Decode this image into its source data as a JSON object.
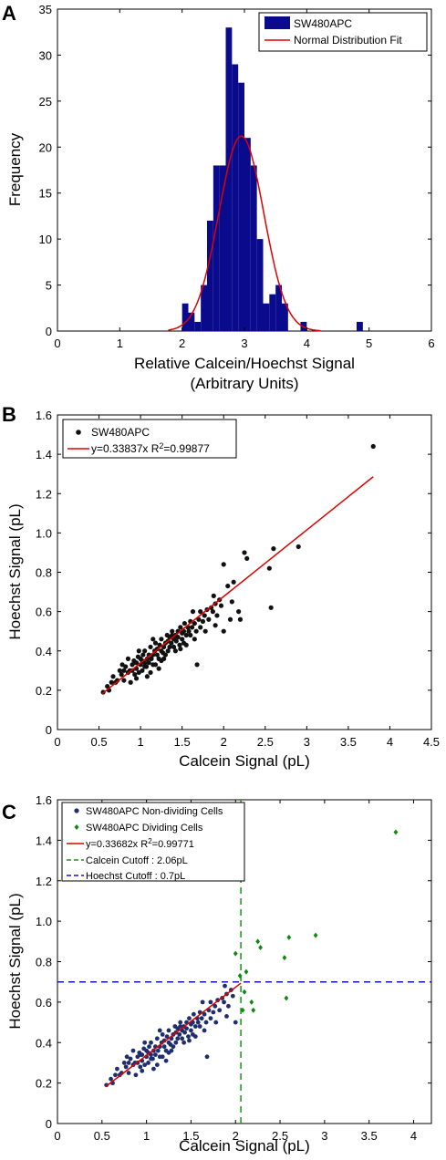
{
  "colors": {
    "bar": "#0a0a8c",
    "fit": "#e00000",
    "point": "#111111",
    "nondividing": "#1f2f6e",
    "dividing": "#118811",
    "calcein_cutoff": "#119911",
    "hoechst_cutoff": "#1111dd"
  },
  "chart_data": [
    {
      "panel": "A",
      "type": "bar",
      "xlabel": [
        "Relative Calcein/Hoechst Signal",
        "(Arbitrary Units)"
      ],
      "ylabel": "Frequency",
      "xlim": [
        0,
        6
      ],
      "ylim": [
        0,
        35
      ],
      "xticks": [
        "0",
        "1",
        "2",
        "3",
        "4",
        "5",
        "6"
      ],
      "yticks": [
        "0",
        "5",
        "10",
        "15",
        "20",
        "25",
        "30",
        "35"
      ],
      "bin_width": 0.1,
      "bins": [
        {
          "x": 2.0,
          "y": 3
        },
        {
          "x": 2.1,
          "y": 2
        },
        {
          "x": 2.2,
          "y": 1
        },
        {
          "x": 2.3,
          "y": 5
        },
        {
          "x": 2.4,
          "y": 12
        },
        {
          "x": 2.5,
          "y": 18
        },
        {
          "x": 2.6,
          "y": 18
        },
        {
          "x": 2.7,
          "y": 33
        },
        {
          "x": 2.8,
          "y": 29
        },
        {
          "x": 2.9,
          "y": 27
        },
        {
          "x": 3.0,
          "y": 21
        },
        {
          "x": 3.1,
          "y": 18
        },
        {
          "x": 3.2,
          "y": 10
        },
        {
          "x": 3.3,
          "y": 3
        },
        {
          "x": 3.4,
          "y": 4
        },
        {
          "x": 3.5,
          "y": 5
        },
        {
          "x": 3.6,
          "y": 3
        },
        {
          "x": 3.7,
          "y": 0
        },
        {
          "x": 3.8,
          "y": 0
        },
        {
          "x": 3.9,
          "y": 1
        },
        {
          "x": 4.8,
          "y": 1
        }
      ],
      "fit": {
        "mean": 2.95,
        "sd": 0.36,
        "peak": 21.2,
        "x_range": [
          1.78,
          4.22
        ]
      },
      "legend": {
        "position": "top-right",
        "entries": [
          "SW480APC",
          "Normal Distribution Fit"
        ]
      }
    },
    {
      "panel": "B",
      "type": "scatter",
      "xlabel": "Calcein Signal (pL)",
      "ylabel": "Hoechst Signal (pL)",
      "xlim": [
        0,
        4.5
      ],
      "ylim": [
        0,
        1.6
      ],
      "xticks": [
        "0",
        "0.5",
        "1",
        "1.5",
        "2",
        "2.5",
        "3",
        "3.5",
        "4",
        "4.5"
      ],
      "yticks": [
        "0",
        "0.2",
        "0.4",
        "0.6",
        "0.8",
        "1.0",
        "1.2",
        "1.4",
        "1.6"
      ],
      "fit_line": {
        "slope": 0.33837,
        "x_range": [
          0.54,
          3.8
        ]
      },
      "legend": {
        "position": "top-left",
        "entries": [
          "SW480APC"
        ],
        "fit_label_prefix": "y=0.33837x R",
        "fit_label_exp": "2",
        "fit_label_suffix": "=0.99877"
      }
    },
    {
      "panel": "C",
      "type": "scatter",
      "xlabel": "Calcein Signal (pL)",
      "ylabel": "Hoechst Signal (pL)",
      "xlim": [
        0,
        4.2
      ],
      "ylim": [
        0,
        1.6
      ],
      "xticks": [
        "0",
        "0.5",
        "1",
        "1.5",
        "2",
        "2.5",
        "3",
        "3.5",
        "4"
      ],
      "yticks": [
        "0",
        "0.2",
        "0.4",
        "0.6",
        "0.8",
        "1.0",
        "1.2",
        "1.4",
        "1.6"
      ],
      "fit_line": {
        "slope": 0.33682,
        "x_range": [
          0.54,
          2.06
        ]
      },
      "calcein_cutoff": 2.06,
      "hoechst_cutoff": 0.7,
      "legend": {
        "position": "top-left",
        "entries": [
          "SW480APC Non-dividing Cells",
          "SW480APC Dividing Cells"
        ],
        "fit_label_prefix": "y=0.33682x R",
        "fit_label_exp": "2",
        "fit_label_suffix": "=0.99771",
        "cutoff_entries": [
          "Calcein Cutoff : 2.06pL",
          "Hoechst Cutoff : 0.7pL"
        ]
      }
    }
  ],
  "scatter_points": [
    [
      0.55,
      0.19
    ],
    [
      0.6,
      0.22
    ],
    [
      0.62,
      0.2
    ],
    [
      0.65,
      0.24
    ],
    [
      0.67,
      0.27
    ],
    [
      0.7,
      0.24
    ],
    [
      0.72,
      0.25
    ],
    [
      0.75,
      0.3
    ],
    [
      0.77,
      0.28
    ],
    [
      0.8,
      0.3
    ],
    [
      0.8,
      0.25
    ],
    [
      0.82,
      0.32
    ],
    [
      0.85,
      0.29
    ],
    [
      0.87,
      0.3
    ],
    [
      0.88,
      0.24
    ],
    [
      0.9,
      0.33
    ],
    [
      0.9,
      0.3
    ],
    [
      0.92,
      0.35
    ],
    [
      0.93,
      0.28
    ],
    [
      0.95,
      0.31
    ],
    [
      0.95,
      0.34
    ],
    [
      0.97,
      0.37
    ],
    [
      0.98,
      0.29
    ],
    [
      1.0,
      0.33
    ],
    [
      1.0,
      0.36
    ],
    [
      1.02,
      0.3
    ],
    [
      1.03,
      0.38
    ],
    [
      1.05,
      0.34
    ],
    [
      1.05,
      0.4
    ],
    [
      1.07,
      0.32
    ],
    [
      1.08,
      0.36
    ],
    [
      1.1,
      0.38
    ],
    [
      1.1,
      0.34
    ],
    [
      1.12,
      0.42
    ],
    [
      1.13,
      0.36
    ],
    [
      1.15,
      0.38
    ],
    [
      1.15,
      0.33
    ],
    [
      1.17,
      0.4
    ],
    [
      1.18,
      0.44
    ],
    [
      1.2,
      0.38
    ],
    [
      1.2,
      0.41
    ],
    [
      1.22,
      0.36
    ],
    [
      1.23,
      0.43
    ],
    [
      1.25,
      0.4
    ],
    [
      1.25,
      0.46
    ],
    [
      1.27,
      0.39
    ],
    [
      1.28,
      0.42
    ],
    [
      1.3,
      0.44
    ],
    [
      1.3,
      0.38
    ],
    [
      1.32,
      0.48
    ],
    [
      1.33,
      0.45
    ],
    [
      1.35,
      0.42
    ],
    [
      1.35,
      0.47
    ],
    [
      1.37,
      0.44
    ],
    [
      1.38,
      0.5
    ],
    [
      1.4,
      0.46
    ],
    [
      1.4,
      0.42
    ],
    [
      1.42,
      0.48
    ],
    [
      1.43,
      0.45
    ],
    [
      1.45,
      0.5
    ],
    [
      1.45,
      0.47
    ],
    [
      1.47,
      0.43
    ],
    [
      1.48,
      0.52
    ],
    [
      1.5,
      0.49
    ],
    [
      1.5,
      0.46
    ],
    [
      1.52,
      0.5
    ],
    [
      1.53,
      0.54
    ],
    [
      1.55,
      0.48
    ],
    [
      1.57,
      0.52
    ],
    [
      1.58,
      0.5
    ],
    [
      1.6,
      0.55
    ],
    [
      1.62,
      0.52
    ],
    [
      1.63,
      0.6
    ],
    [
      1.65,
      0.54
    ],
    [
      1.67,
      0.5
    ],
    [
      1.68,
      0.33
    ],
    [
      1.7,
      0.56
    ],
    [
      1.72,
      0.6
    ],
    [
      1.75,
      0.55
    ],
    [
      1.77,
      0.58
    ],
    [
      1.8,
      0.61
    ],
    [
      1.82,
      0.56
    ],
    [
      1.85,
      0.62
    ],
    [
      1.87,
      0.6
    ],
    [
      1.88,
      0.68
    ],
    [
      1.9,
      0.64
    ],
    [
      1.92,
      0.58
    ],
    [
      1.95,
      0.66
    ],
    [
      1.97,
      0.63
    ],
    [
      2.0,
      0.5
    ],
    [
      0.85,
      0.36
    ],
    [
      0.95,
      0.26
    ],
    [
      1.08,
      0.27
    ],
    [
      1.18,
      0.33
    ],
    [
      1.28,
      0.36
    ],
    [
      1.33,
      0.4
    ],
    [
      1.42,
      0.4
    ],
    [
      1.52,
      0.44
    ],
    [
      1.6,
      0.48
    ],
    [
      1.72,
      0.52
    ],
    [
      0.78,
      0.33
    ],
    [
      0.98,
      0.4
    ],
    [
      1.12,
      0.29
    ],
    [
      1.22,
      0.31
    ],
    [
      1.38,
      0.48
    ],
    [
      1.55,
      0.43
    ],
    [
      1.65,
      0.46
    ],
    [
      1.78,
      0.5
    ],
    [
      1.9,
      0.53
    ],
    [
      1.02,
      0.35
    ],
    [
      1.15,
      0.46
    ],
    [
      1.25,
      0.35
    ],
    [
      1.48,
      0.41
    ],
    [
      1.05,
      0.32
    ],
    [
      0.93,
      0.34
    ]
  ],
  "dividing_points": [
    [
      2.0,
      0.84
    ],
    [
      2.05,
      0.73
    ],
    [
      2.08,
      0.56
    ],
    [
      2.1,
      0.65
    ],
    [
      2.12,
      0.75
    ],
    [
      2.18,
      0.6
    ],
    [
      2.2,
      0.56
    ],
    [
      2.25,
      0.9
    ],
    [
      2.28,
      0.87
    ],
    [
      2.55,
      0.82
    ],
    [
      2.57,
      0.62
    ],
    [
      2.6,
      0.92
    ],
    [
      2.9,
      0.93
    ],
    [
      3.8,
      1.44
    ]
  ]
}
